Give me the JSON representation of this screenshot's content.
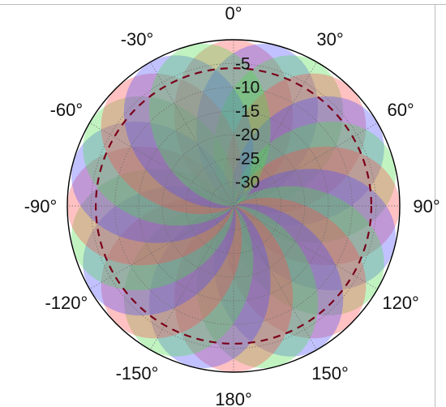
{
  "chart_data": {
    "type": "polar",
    "title": "",
    "angle_labels": [
      "0°",
      "30°",
      "60°",
      "90°",
      "120°",
      "150°",
      "180°",
      "-150°",
      "-120°",
      "-90°",
      "-60°",
      "-30°"
    ],
    "radial_labels": [
      "-5",
      "-10",
      "-15",
      "-20",
      "-25",
      "-30"
    ],
    "radial_values": [
      -5,
      -10,
      -15,
      -20,
      -25,
      -30
    ],
    "r_range": [
      -35,
      0
    ],
    "grid": true,
    "reference_circle": {
      "value": -6,
      "color": "#7a0019",
      "style": "dashed"
    },
    "lobe_peak_value": 0,
    "lobe_colors": [
      "#ff4d4d",
      "#4d4dff",
      "#4ddc4d"
    ],
    "lobe_opacity": 0.35,
    "lobe_directions_deg": [
      0,
      15,
      30,
      45,
      60,
      75,
      90,
      105,
      120,
      135,
      150,
      165,
      180,
      195,
      210,
      225,
      240,
      255,
      270,
      285,
      300,
      315,
      330,
      345
    ],
    "lobe_color_sequence": [
      0,
      1,
      2,
      0,
      1,
      2,
      0,
      1,
      2,
      0,
      1,
      2,
      0,
      1,
      2,
      0,
      1,
      2,
      0,
      1,
      2,
      0,
      1,
      2
    ]
  }
}
